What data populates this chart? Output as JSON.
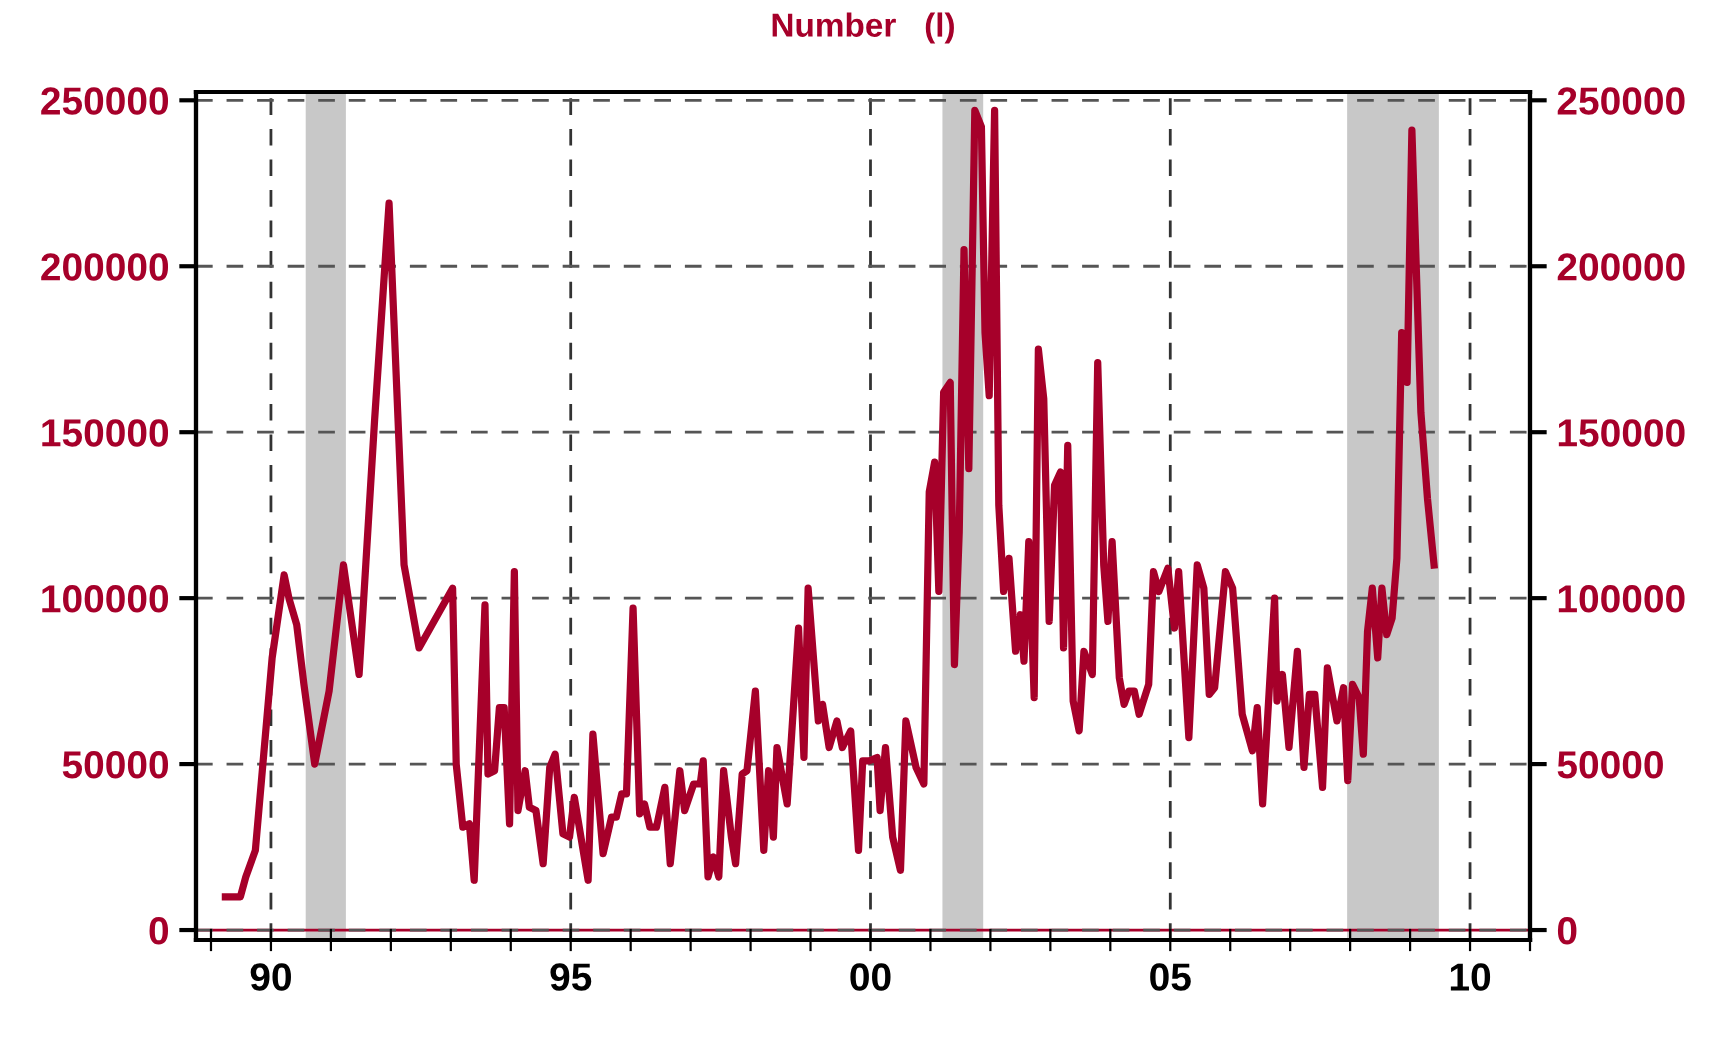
{
  "chart_data": {
    "type": "line",
    "title": "Number   (l)",
    "x": [
      1989.24,
      1989.49,
      1989.58,
      1989.74,
      1990.02,
      1990.22,
      1990.3,
      1990.43,
      1990.55,
      1990.73,
      1990.97,
      1991.21,
      1991.47,
      1991.73,
      1991.97,
      1992.22,
      1992.47,
      1993.03,
      1993.09,
      1993.2,
      1993.31,
      1993.39,
      1993.57,
      1993.62,
      1993.73,
      1993.81,
      1993.89,
      1993.98,
      1994.06,
      1994.12,
      1994.24,
      1994.31,
      1994.42,
      1994.54,
      1994.65,
      1994.74,
      1994.87,
      1994.98,
      1995.06,
      1995.29,
      1995.37,
      1995.54,
      1995.68,
      1995.76,
      1995.85,
      1995.93,
      1996.04,
      1996.15,
      1996.23,
      1996.32,
      1996.43,
      1996.57,
      1996.66,
      1996.82,
      1996.9,
      1997.05,
      1997.16,
      1997.21,
      1997.29,
      1997.38,
      1997.47,
      1997.55,
      1997.68,
      1997.75,
      1997.86,
      1997.94,
      1998.08,
      1998.22,
      1998.3,
      1998.38,
      1998.44,
      1998.61,
      1998.8,
      1998.89,
      1998.96,
      1999.13,
      1999.2,
      1999.31,
      1999.44,
      1999.53,
      1999.67,
      1999.8,
      1999.87,
      1999.98,
      2000.11,
      2000.16,
      2000.25,
      2000.37,
      2000.5,
      2000.59,
      2000.76,
      2000.89,
      2000.98,
      2001.07,
      2001.14,
      2001.22,
      2001.33,
      2001.4,
      2001.48,
      2001.56,
      2001.64,
      2001.74,
      2001.85,
      2001.91,
      2001.98,
      2002.07,
      2002.14,
      2002.22,
      2002.31,
      2002.42,
      2002.5,
      2002.56,
      2002.64,
      2002.73,
      2002.8,
      2002.89,
      2002.98,
      2003.07,
      2003.17,
      2003.22,
      2003.29,
      2003.38,
      2003.48,
      2003.56,
      2003.7,
      2003.79,
      2003.89,
      2003.96,
      2004.03,
      2004.15,
      2004.23,
      2004.31,
      2004.4,
      2004.48,
      2004.64,
      2004.72,
      2004.81,
      2004.96,
      2005.07,
      2005.14,
      2005.31,
      2005.45,
      2005.56,
      2005.65,
      2005.74,
      2005.92,
      2006.04,
      2006.2,
      2006.37,
      2006.45,
      2006.54,
      2006.74,
      2006.78,
      2006.87,
      2006.98,
      2007.12,
      2007.23,
      2007.32,
      2007.41,
      2007.54,
      2007.62,
      2007.78,
      2007.89,
      2007.96,
      2008.04,
      2008.15,
      2008.22,
      2008.29,
      2008.37,
      2008.46,
      2008.53,
      2008.61,
      2008.7,
      2008.78,
      2008.86,
      2008.95,
      2009.03,
      2009.18,
      2009.29,
      2009.4
    ],
    "series": [
      {
        "color": "#a6002a",
        "values": [
          10000,
          10000,
          16000,
          24000,
          82000,
          107000,
          100000,
          92000,
          74000,
          50000,
          72000,
          110000,
          77000,
          154000,
          219000,
          110000,
          85000,
          103000,
          50000,
          31000,
          32000,
          15000,
          98000,
          47000,
          48000,
          67000,
          67000,
          32000,
          108000,
          36000,
          48000,
          37000,
          36000,
          20000,
          49000,
          53000,
          29000,
          28000,
          40000,
          15000,
          59000,
          23000,
          34000,
          34000,
          41000,
          41000,
          97000,
          35000,
          38000,
          31000,
          31000,
          43000,
          20000,
          48000,
          36000,
          44000,
          44000,
          51000,
          16000,
          22000,
          16000,
          48000,
          28000,
          20000,
          47000,
          48000,
          72000,
          24000,
          48000,
          28000,
          55000,
          38000,
          91000,
          52000,
          103000,
          63000,
          68000,
          55000,
          63000,
          55000,
          60000,
          24000,
          51000,
          51000,
          52000,
          36000,
          55000,
          28000,
          18000,
          63000,
          49000,
          44000,
          132000,
          141000,
          102000,
          162000,
          165000,
          80000,
          120000,
          205000,
          139000,
          247000,
          242000,
          180000,
          161000,
          247000,
          128000,
          102000,
          112000,
          84000,
          95000,
          81000,
          117000,
          70000,
          175000,
          160000,
          93000,
          134000,
          138000,
          85000,
          146000,
          69000,
          60000,
          84000,
          77000,
          171000,
          110000,
          93000,
          117000,
          76000,
          68000,
          72000,
          72000,
          65000,
          74000,
          108000,
          102000,
          109000,
          91000,
          108000,
          58000,
          110000,
          103000,
          71000,
          73000,
          108000,
          103000,
          65000,
          54000,
          67000,
          38000,
          100000,
          69000,
          77000,
          55000,
          84000,
          49000,
          71000,
          71000,
          43000,
          79000,
          63000,
          73000,
          45000,
          74000,
          70000,
          53000,
          90000,
          103000,
          82000,
          103000,
          89000,
          94000,
          112000,
          180000,
          165000,
          241000,
          156000,
          130000,
          110000
        ]
      }
    ],
    "xlim": [
      1988.75,
      2011.0
    ],
    "ylim": [
      -3000,
      252500
    ],
    "xticks": [
      {
        "value": 1989,
        "label": null
      },
      {
        "value": 1990,
        "label": "90"
      },
      {
        "value": 1991,
        "label": null
      },
      {
        "value": 1992,
        "label": null
      },
      {
        "value": 1993,
        "label": null
      },
      {
        "value": 1994,
        "label": null
      },
      {
        "value": 1995,
        "label": "95"
      },
      {
        "value": 1996,
        "label": null
      },
      {
        "value": 1997,
        "label": null
      },
      {
        "value": 1998,
        "label": null
      },
      {
        "value": 1999,
        "label": null
      },
      {
        "value": 2000,
        "label": "00"
      },
      {
        "value": 2001,
        "label": null
      },
      {
        "value": 2002,
        "label": null
      },
      {
        "value": 2003,
        "label": null
      },
      {
        "value": 2004,
        "label": null
      },
      {
        "value": 2005,
        "label": "05"
      },
      {
        "value": 2006,
        "label": null
      },
      {
        "value": 2007,
        "label": null
      },
      {
        "value": 2008,
        "label": null
      },
      {
        "value": 2009,
        "label": null
      },
      {
        "value": 2010,
        "label": "10"
      },
      {
        "value": 2011,
        "label": null
      }
    ],
    "yticks": [
      0,
      50000,
      100000,
      150000,
      200000,
      250000
    ],
    "y2lim": [
      -3000,
      252500
    ],
    "y2ticks": [
      0,
      50000,
      100000,
      150000,
      200000,
      250000
    ],
    "grid": true,
    "line_style": "solid",
    "ref_lines": [
      {
        "axis": "y",
        "value": 0,
        "color": "#a6002a"
      }
    ],
    "bands": [
      {
        "axis": "x",
        "from": 1990.58,
        "to": 1991.25,
        "color": "#c8c8c8"
      },
      {
        "axis": "x",
        "from": 2001.2,
        "to": 2001.88,
        "color": "#c8c8c8"
      },
      {
        "axis": "x",
        "from": 2007.95,
        "to": 2009.48,
        "color": "#c8c8c8"
      }
    ]
  }
}
